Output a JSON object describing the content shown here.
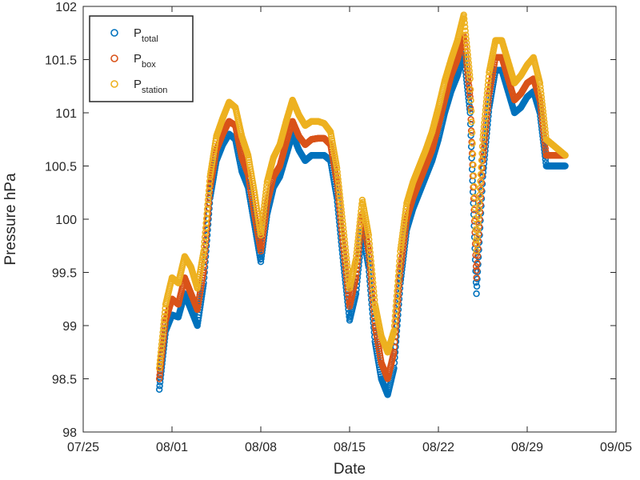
{
  "chart_data": {
    "type": "scatter",
    "title": "",
    "xlabel": "Date",
    "ylabel": "Pressure hPa",
    "xlim": [
      "07/25",
      "09/05"
    ],
    "ylim": [
      98,
      102
    ],
    "xticks": [
      "07/25",
      "08/01",
      "08/08",
      "08/15",
      "08/22",
      "08/29",
      "09/05"
    ],
    "yticks": [
      "98",
      "98.5",
      "99",
      "99.5",
      "100",
      "100.5",
      "101",
      "101.5",
      "102"
    ],
    "grid": false,
    "legend_position": "top-left",
    "marker": "open circle",
    "series": [
      {
        "name": "P_total",
        "label_main": "P",
        "label_sub": "total",
        "color": "#0072BD",
        "x": [
          "07/31 00:00",
          "07/31 12:00",
          "08/01 00:00",
          "08/01 12:00",
          "08/02 00:00",
          "08/02 12:00",
          "08/03 00:00",
          "08/03 12:00",
          "08/04 00:00",
          "08/04 12:00",
          "08/05 00:00",
          "08/05 12:00",
          "08/06 00:00",
          "08/06 12:00",
          "08/07 00:00",
          "08/07 12:00",
          "08/08 00:00",
          "08/08 12:00",
          "08/09 00:00",
          "08/09 12:00",
          "08/10 00:00",
          "08/10 12:00",
          "08/11 00:00",
          "08/11 12:00",
          "08/12 00:00",
          "08/12 12:00",
          "08/13 00:00",
          "08/13 12:00",
          "08/14 00:00",
          "08/14 12:00",
          "08/15 00:00",
          "08/15 12:00",
          "08/16 00:00",
          "08/16 12:00",
          "08/17 00:00",
          "08/17 12:00",
          "08/18 00:00",
          "08/18 12:00",
          "08/19 00:00",
          "08/19 12:00",
          "08/20 00:00",
          "08/20 12:00",
          "08/21 00:00",
          "08/21 12:00",
          "08/22 00:00",
          "08/22 12:00",
          "08/23 00:00",
          "08/23 12:00",
          "08/24 00:00",
          "08/24 12:00",
          "08/25 00:00",
          "08/25 12:00",
          "08/26 00:00",
          "08/26 12:00",
          "08/27 00:00",
          "08/27 12:00",
          "08/28 00:00",
          "08/28 12:00",
          "08/29 00:00",
          "08/29 12:00",
          "08/30 00:00",
          "08/30 12:00",
          "08/31 00:00",
          "08/31 12:00",
          "09/01 00:00"
        ],
        "y": [
          98.4,
          98.95,
          99.1,
          99.08,
          99.3,
          99.15,
          99.0,
          99.4,
          100.2,
          100.55,
          100.7,
          100.8,
          100.75,
          100.45,
          100.3,
          99.95,
          99.6,
          100.05,
          100.3,
          100.4,
          100.6,
          100.8,
          100.65,
          100.55,
          100.6,
          100.6,
          100.6,
          100.55,
          100.2,
          99.6,
          99.05,
          99.3,
          99.9,
          99.55,
          98.85,
          98.5,
          98.35,
          98.6,
          99.4,
          99.9,
          100.1,
          100.25,
          100.4,
          100.55,
          100.75,
          101.0,
          101.2,
          101.35,
          101.55,
          101.0,
          99.3,
          100.4,
          101.05,
          101.4,
          101.4,
          101.2,
          101.0,
          101.05,
          101.15,
          101.2,
          101.0,
          100.5,
          100.5,
          100.5,
          100.5
        ]
      },
      {
        "name": "P_box",
        "label_main": "P",
        "label_sub": "box",
        "color": "#D95319",
        "x": [
          "07/31 00:00",
          "07/31 12:00",
          "08/01 00:00",
          "08/01 12:00",
          "08/02 00:00",
          "08/02 12:00",
          "08/03 00:00",
          "08/03 12:00",
          "08/04 00:00",
          "08/04 12:00",
          "08/05 00:00",
          "08/05 12:00",
          "08/06 00:00",
          "08/06 12:00",
          "08/07 00:00",
          "08/07 12:00",
          "08/08 00:00",
          "08/08 12:00",
          "08/09 00:00",
          "08/09 12:00",
          "08/10 00:00",
          "08/10 12:00",
          "08/11 00:00",
          "08/11 12:00",
          "08/12 00:00",
          "08/12 12:00",
          "08/13 00:00",
          "08/13 12:00",
          "08/14 00:00",
          "08/14 12:00",
          "08/15 00:00",
          "08/15 12:00",
          "08/16 00:00",
          "08/16 12:00",
          "08/17 00:00",
          "08/17 12:00",
          "08/18 00:00",
          "08/18 12:00",
          "08/19 00:00",
          "08/19 12:00",
          "08/20 00:00",
          "08/20 12:00",
          "08/21 00:00",
          "08/21 12:00",
          "08/22 00:00",
          "08/22 12:00",
          "08/23 00:00",
          "08/23 12:00",
          "08/24 00:00",
          "08/24 12:00",
          "08/25 00:00",
          "08/25 12:00",
          "08/26 00:00",
          "08/26 12:00",
          "08/27 00:00",
          "08/27 12:00",
          "08/28 00:00",
          "08/28 12:00",
          "08/29 00:00",
          "08/29 12:00",
          "08/30 00:00",
          "08/30 12:00",
          "08/31 00:00",
          "08/31 12:00",
          "09/01 00:00"
        ],
        "y": [
          98.5,
          99.05,
          99.25,
          99.2,
          99.45,
          99.3,
          99.15,
          99.52,
          100.3,
          100.65,
          100.8,
          100.92,
          100.88,
          100.58,
          100.42,
          100.05,
          99.7,
          100.15,
          100.4,
          100.5,
          100.72,
          100.92,
          100.78,
          100.7,
          100.75,
          100.76,
          100.76,
          100.7,
          100.35,
          99.75,
          99.18,
          99.45,
          100.05,
          99.7,
          99.0,
          98.65,
          98.5,
          98.75,
          99.52,
          100.0,
          100.2,
          100.35,
          100.5,
          100.65,
          100.88,
          101.12,
          101.35,
          101.5,
          101.72,
          101.15,
          99.45,
          100.55,
          101.18,
          101.52,
          101.52,
          101.32,
          101.12,
          101.18,
          101.28,
          101.32,
          101.12,
          100.6,
          100.6,
          100.6,
          100.6
        ]
      },
      {
        "name": "P_station",
        "label_main": "P",
        "label_sub": "station",
        "color": "#EDB120",
        "x": [
          "07/31 00:00",
          "07/31 12:00",
          "08/01 00:00",
          "08/01 12:00",
          "08/02 00:00",
          "08/02 12:00",
          "08/03 00:00",
          "08/03 12:00",
          "08/04 00:00",
          "08/04 12:00",
          "08/05 00:00",
          "08/05 12:00",
          "08/06 00:00",
          "08/06 12:00",
          "08/07 00:00",
          "08/07 12:00",
          "08/08 00:00",
          "08/08 12:00",
          "08/09 00:00",
          "08/09 12:00",
          "08/10 00:00",
          "08/10 12:00",
          "08/11 00:00",
          "08/11 12:00",
          "08/12 00:00",
          "08/12 12:00",
          "08/13 00:00",
          "08/13 12:00",
          "08/14 00:00",
          "08/14 12:00",
          "08/15 00:00",
          "08/15 12:00",
          "08/16 00:00",
          "08/16 12:00",
          "08/17 00:00",
          "08/17 12:00",
          "08/18 00:00",
          "08/18 12:00",
          "08/19 00:00",
          "08/19 12:00",
          "08/20 00:00",
          "08/20 12:00",
          "08/21 00:00",
          "08/21 12:00",
          "08/22 00:00",
          "08/22 12:00",
          "08/23 00:00",
          "08/23 12:00",
          "08/24 00:00",
          "08/24 12:00",
          "08/25 00:00",
          "08/25 12:00",
          "08/26 00:00",
          "08/26 12:00",
          "08/27 00:00",
          "08/27 12:00",
          "08/28 00:00",
          "08/28 12:00",
          "08/29 00:00",
          "08/29 12:00",
          "08/30 00:00",
          "08/30 12:00",
          "08/31 00:00",
          "08/31 12:00",
          "09/01 00:00"
        ],
        "y": [
          98.6,
          99.2,
          99.45,
          99.4,
          99.65,
          99.55,
          99.35,
          99.7,
          100.4,
          100.78,
          100.95,
          101.1,
          101.05,
          100.78,
          100.6,
          100.25,
          99.85,
          100.35,
          100.58,
          100.7,
          100.92,
          101.12,
          100.98,
          100.88,
          100.92,
          100.92,
          100.9,
          100.82,
          100.48,
          99.92,
          99.35,
          99.62,
          100.18,
          99.85,
          99.2,
          98.9,
          98.75,
          98.95,
          99.7,
          100.15,
          100.35,
          100.5,
          100.65,
          100.82,
          101.05,
          101.3,
          101.5,
          101.68,
          101.92,
          101.32,
          99.7,
          100.75,
          101.38,
          101.68,
          101.68,
          101.48,
          101.28,
          101.35,
          101.45,
          101.52,
          101.28,
          100.75,
          100.7,
          100.65,
          100.6
        ]
      }
    ]
  }
}
